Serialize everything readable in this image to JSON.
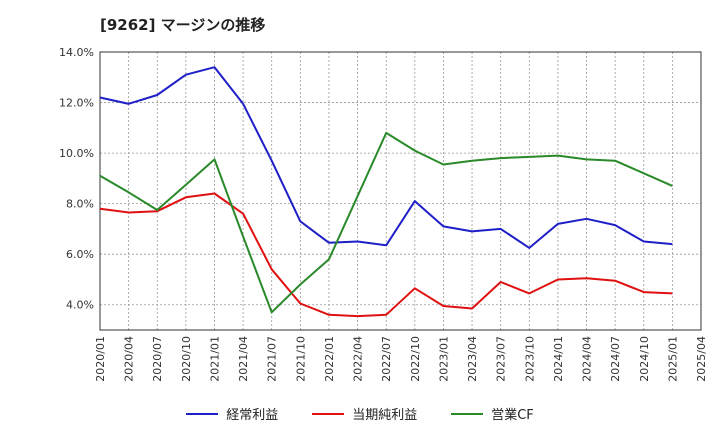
{
  "chart_data": {
    "type": "line",
    "title": "[9262]  マージンの推移",
    "x": [
      "2020/01",
      "2020/04",
      "2020/07",
      "2020/10",
      "2021/01",
      "2021/04",
      "2021/07",
      "2021/10",
      "2022/01",
      "2022/04",
      "2022/07",
      "2022/10",
      "2023/01",
      "2023/04",
      "2023/07",
      "2023/10",
      "2024/01",
      "2024/04",
      "2024/07",
      "2024/10",
      "2025/01",
      "2025/04"
    ],
    "yticks": [
      "4.0%",
      "6.0%",
      "8.0%",
      "10.0%",
      "12.0%",
      "14.0%"
    ],
    "ylim": [
      3.0,
      14.0
    ],
    "grid": true,
    "legend_position": "bottom",
    "series": [
      {
        "name": "経常利益",
        "color": "#1f1fc8",
        "values": [
          12.2,
          11.95,
          12.3,
          13.1,
          13.4,
          11.95,
          9.7,
          7.3,
          6.45,
          6.5,
          6.35,
          8.1,
          7.1,
          6.9,
          7.0,
          6.25,
          7.2,
          7.4,
          7.15,
          6.5,
          6.4,
          null
        ]
      },
      {
        "name": "当期純利益",
        "color": "#e01010",
        "values": [
          7.8,
          7.65,
          7.7,
          8.25,
          8.4,
          7.6,
          5.4,
          4.05,
          3.6,
          3.55,
          3.6,
          4.65,
          3.95,
          3.85,
          4.9,
          4.45,
          5.0,
          5.05,
          4.95,
          4.5,
          4.45,
          null
        ]
      },
      {
        "name": "営業CF",
        "color": "#2a8a2a",
        "values": [
          9.1,
          8.45,
          7.75,
          8.75,
          9.75,
          6.7,
          3.7,
          4.8,
          5.8,
          8.3,
          10.8,
          10.1,
          9.55,
          9.7,
          9.8,
          9.85,
          9.9,
          9.75,
          9.7,
          9.2,
          8.7,
          null
        ]
      }
    ]
  }
}
